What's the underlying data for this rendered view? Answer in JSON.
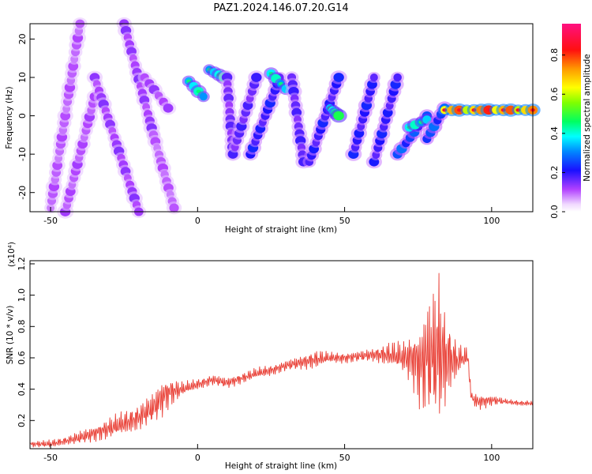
{
  "title": "PAZ1.2024.146.07.20.G14",
  "colors": {
    "snr_line": "#e8392f",
    "axis": "#000000",
    "background": "#ffffff"
  },
  "chart_data": [
    {
      "type": "heatmap",
      "xlabel": "Height of straight line (km)",
      "ylabel": "Frequency (Hz)",
      "xlim": [
        -57,
        114
      ],
      "ylim": [
        -25,
        24
      ],
      "x_ticks": [
        -50,
        0,
        50,
        100
      ],
      "y_ticks": [
        -20,
        -10,
        0,
        10,
        20
      ],
      "colorbar": {
        "label": "Normalized spectral amplitude",
        "range": [
          0,
          0.96
        ],
        "ticks": [
          0.0,
          0.2,
          0.4,
          0.6,
          0.8
        ],
        "tick_labels": [
          "0.0",
          "0.2",
          "0.4",
          "0.6",
          "0.8"
        ],
        "colormap": "rainbow (white-purple-blue-cyan-green-yellow-orange-red-magenta)"
      },
      "features": [
        {
          "x": [
            -50,
            -40
          ],
          "y": [
            -24,
            24
          ],
          "level": 0.12
        },
        {
          "x": [
            -45,
            -35
          ],
          "y": [
            -25,
            5
          ],
          "level": 0.13
        },
        {
          "x": [
            -35,
            -20
          ],
          "y": [
            10,
            -25
          ],
          "level": 0.15
        },
        {
          "x": [
            -25,
            -15
          ],
          "y": [
            24,
            -5
          ],
          "level": 0.15
        },
        {
          "x": [
            -15,
            -8
          ],
          "y": [
            -5,
            -24
          ],
          "level": 0.12
        },
        {
          "x": [
            -18,
            -10
          ],
          "y": [
            10,
            2
          ],
          "level": 0.14
        },
        {
          "x": [
            -3,
            2
          ],
          "y": [
            9,
            5
          ],
          "level": 0.45
        },
        {
          "x": [
            4,
            9
          ],
          "y": [
            12,
            10
          ],
          "level": 0.45
        },
        {
          "x": [
            10,
            12
          ],
          "y": [
            10,
            -10
          ],
          "level": 0.18
        },
        {
          "x": [
            12,
            20
          ],
          "y": [
            -10,
            10
          ],
          "level": 0.2
        },
        {
          "x": [
            18,
            28
          ],
          "y": [
            -10,
            10
          ],
          "level": 0.24
        },
        {
          "x": [
            25,
            30
          ],
          "y": [
            11,
            7
          ],
          "level": 0.45
        },
        {
          "x": [
            32,
            36
          ],
          "y": [
            10,
            -12
          ],
          "level": 0.2
        },
        {
          "x": [
            38,
            48
          ],
          "y": [
            -12,
            10
          ],
          "level": 0.24
        },
        {
          "x": [
            45,
            48
          ],
          "y": [
            2,
            0
          ],
          "level": 0.5
        },
        {
          "x": [
            53,
            60
          ],
          "y": [
            -10,
            10
          ],
          "level": 0.24
        },
        {
          "x": [
            60,
            68
          ],
          "y": [
            -12,
            10
          ],
          "level": 0.24
        },
        {
          "x": [
            68,
            78
          ],
          "y": [
            -10,
            0
          ],
          "level": 0.3
        },
        {
          "x": [
            72,
            78
          ],
          "y": [
            -3,
            -1
          ],
          "level": 0.45
        },
        {
          "x": [
            78,
            84
          ],
          "y": [
            -6,
            2
          ],
          "level": 0.3
        },
        {
          "x": [
            84,
            114
          ],
          "y": [
            1.5,
            1.5
          ],
          "level": 0.85
        }
      ]
    },
    {
      "type": "line",
      "xlabel": "Height of straight line (km)",
      "ylabel": "SNR (10 * v/v)",
      "y_multiplier": "(x10⁴)",
      "xlim": [
        -57,
        114
      ],
      "ylim": [
        0.02,
        1.22
      ],
      "x_ticks": [
        -50,
        0,
        50,
        100
      ],
      "y_ticks": [
        0.2,
        0.4,
        0.6,
        0.8,
        1.0,
        1.2
      ],
      "series": [
        {
          "x": [
            -57,
            -50,
            -45,
            -40,
            -35,
            -30,
            -25,
            -20,
            -15,
            -12,
            -10,
            -5,
            0,
            5,
            10,
            15,
            20,
            25,
            30,
            35,
            40,
            45,
            50,
            55,
            60,
            65,
            70,
            73,
            76,
            78,
            80,
            82,
            84,
            86,
            88,
            90,
            92,
            93,
            95,
            100,
            105,
            110,
            114
          ],
          "y": [
            0.05,
            0.05,
            0.07,
            0.09,
            0.12,
            0.15,
            0.18,
            0.22,
            0.28,
            0.35,
            0.38,
            0.4,
            0.43,
            0.46,
            0.44,
            0.47,
            0.5,
            0.52,
            0.55,
            0.57,
            0.59,
            0.6,
            0.6,
            0.61,
            0.62,
            0.62,
            0.6,
            0.6,
            0.55,
            0.6,
            0.6,
            0.65,
            0.6,
            0.6,
            0.58,
            0.6,
            0.6,
            0.35,
            0.32,
            0.33,
            0.32,
            0.31,
            0.31
          ],
          "amplitude": [
            0.02,
            0.03,
            0.03,
            0.05,
            0.06,
            0.08,
            0.09,
            0.1,
            0.12,
            0.14,
            0.12,
            0.05,
            0.04,
            0.04,
            0.04,
            0.04,
            0.04,
            0.04,
            0.04,
            0.05,
            0.07,
            0.04,
            0.04,
            0.04,
            0.05,
            0.09,
            0.12,
            0.2,
            0.35,
            0.45,
            0.5,
            0.6,
            0.4,
            0.25,
            0.15,
            0.08,
            0.08,
            0.04,
            0.06,
            0.04,
            0.02,
            0.02,
            0.02
          ]
        }
      ]
    }
  ]
}
